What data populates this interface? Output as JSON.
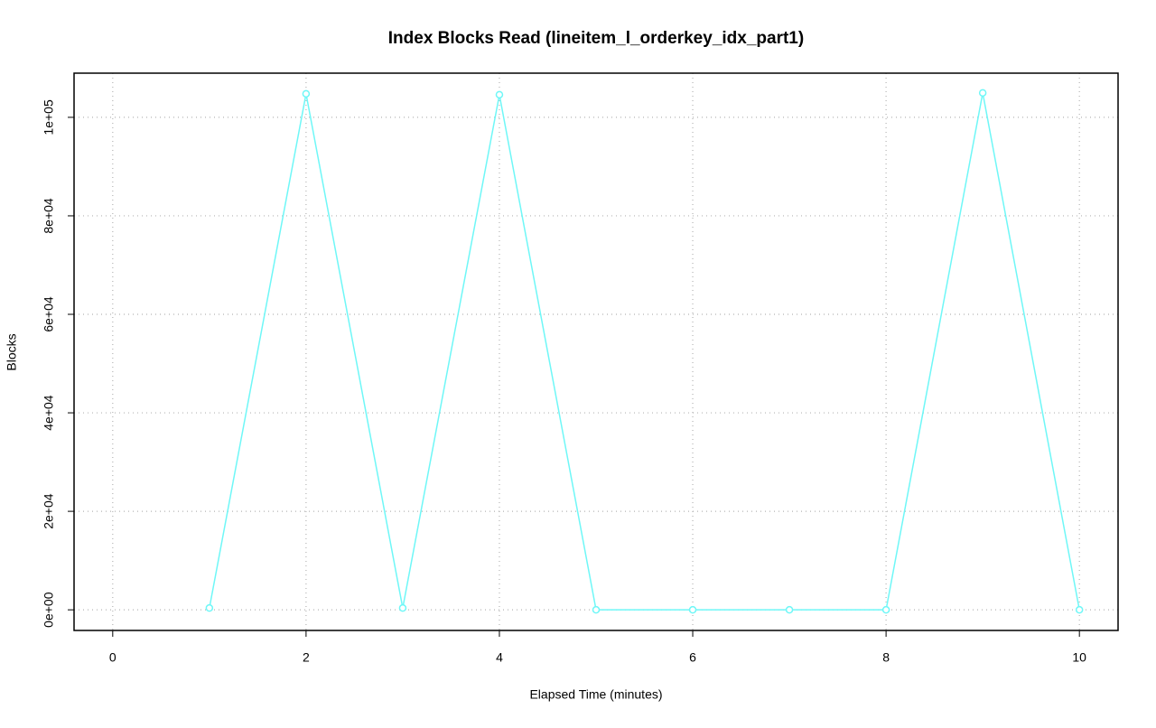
{
  "chart_data": {
    "type": "line",
    "title": "Index Blocks Read (lineitem_l_orderkey_idx_part1)",
    "x_label": "Elapsed Time (minutes)",
    "y_label": "Blocks",
    "x": [
      1,
      2,
      3,
      4,
      5,
      6,
      7,
      8,
      9,
      10
    ],
    "series": [
      {
        "name": "lineitem_l_orderkey_idx_part1",
        "color": "#6ff7f7",
        "values": [
          370,
          104780,
          370,
          104600,
          0,
          0,
          0,
          0,
          104960,
          0
        ]
      }
    ],
    "xlim": [
      -0.4,
      10.4
    ],
    "xticks": [
      0,
      2,
      4,
      6,
      8,
      10
    ],
    "ylim": [
      -4190,
      108970
    ],
    "yticks": [
      {
        "value": 0,
        "label": "0e+00"
      },
      {
        "value": 20000,
        "label": "2e+04"
      },
      {
        "value": 40000,
        "label": "4e+04"
      },
      {
        "value": 60000,
        "label": "6e+04"
      },
      {
        "value": 80000,
        "label": "8e+04"
      },
      {
        "value": 100000,
        "label": "1e+05"
      }
    ],
    "grid": true
  }
}
